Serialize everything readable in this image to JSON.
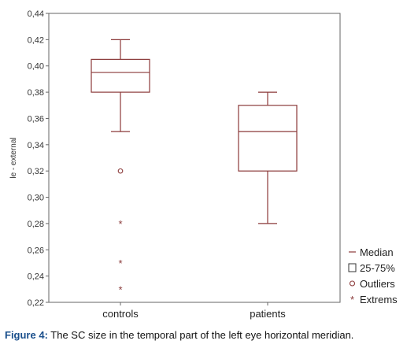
{
  "chart_data": {
    "type": "box",
    "ylabel": "le - external",
    "ylim": [
      0.22,
      0.44
    ],
    "yticks": [
      "0,22",
      "0,24",
      "0,26",
      "0,28",
      "0,30",
      "0,32",
      "0,34",
      "0,36",
      "0,38",
      "0,40",
      "0,42",
      "0,44"
    ],
    "yticks_values": [
      0.22,
      0.24,
      0.26,
      0.28,
      0.3,
      0.32,
      0.34,
      0.36,
      0.38,
      0.4,
      0.42,
      0.44
    ],
    "categories": [
      "controls",
      "patients"
    ],
    "boxes": [
      {
        "category": "controls",
        "whisker_low": 0.35,
        "q1": 0.38,
        "median": 0.395,
        "q3": 0.405,
        "whisker_high": 0.42,
        "outliers": [
          0.32
        ],
        "extremes": [
          0.28,
          0.25,
          0.23
        ]
      },
      {
        "category": "patients",
        "whisker_low": 0.28,
        "q1": 0.32,
        "median": 0.35,
        "q3": 0.37,
        "whisker_high": 0.38,
        "outliers": [],
        "extremes": []
      }
    ],
    "legend": {
      "position": "bottom-right",
      "items": [
        "Median",
        "25-75%",
        "Outliers",
        "Extrems"
      ]
    },
    "grid": false,
    "colors": {
      "box": "#8b3a3a",
      "axis": "#666666"
    }
  },
  "caption": {
    "label": "Figure 4:",
    "text": " The SC size in the temporal part of the left eye horizontal meridian."
  }
}
